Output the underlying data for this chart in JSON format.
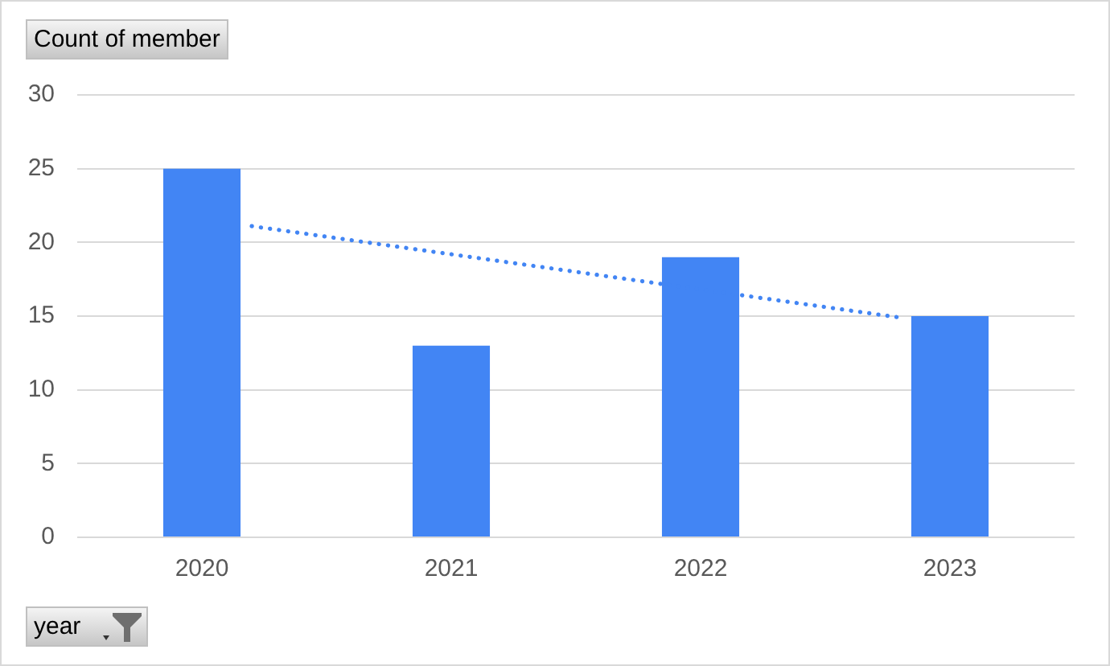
{
  "chart_data": {
    "type": "bar",
    "ylabel": "Count of member",
    "xlabel": "year",
    "x": [
      2020,
      2021,
      2022,
      2023
    ],
    "series": [
      {
        "color": "#4285f4",
        "values": [
          25,
          13,
          19,
          15
        ]
      },
      {
        "type": "line",
        "color": "#4285f4",
        "x": [
          2020.2,
          2022.8
        ],
        "values": [
          21.1,
          14.9
        ],
        "line_style": "dotted",
        "marker": "none"
      }
    ],
    "xlim": [
      2019.5,
      2023.5
    ],
    "xticks": [
      2020,
      2021,
      2022,
      2023
    ],
    "ylim": [
      0,
      30
    ],
    "yticks": [
      0,
      5,
      10,
      15,
      20,
      25,
      30
    ],
    "grid": "y",
    "legend": false
  }
}
